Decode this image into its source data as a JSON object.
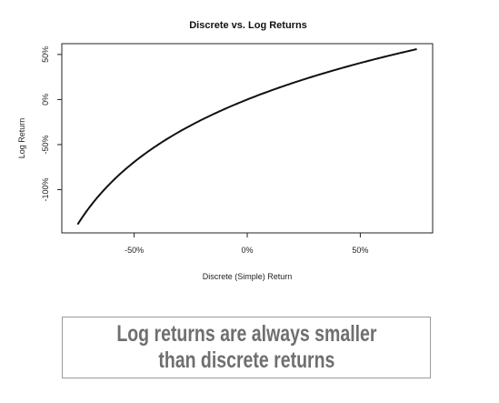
{
  "chart_data": {
    "type": "line",
    "title": "Discrete vs. Log Returns",
    "xlabel": "Discrete (Simple) Return",
    "ylabel": "Log Return",
    "xlim": [
      -0.82,
      0.82
    ],
    "ylim": [
      -1.48,
      0.62
    ],
    "x_ticks": [
      {
        "value": -0.5,
        "label": "-50%"
      },
      {
        "value": 0,
        "label": "0%"
      },
      {
        "value": 0.5,
        "label": "50%"
      }
    ],
    "y_ticks": [
      {
        "value": -1.0,
        "label": "-100%"
      },
      {
        "value": -0.5,
        "label": "-50%"
      },
      {
        "value": 0,
        "label": "0%"
      },
      {
        "value": 0.5,
        "label": "50%"
      }
    ],
    "grid": false,
    "series": [
      {
        "function": "y = ln(1 + x)",
        "x_range": [
          -0.75,
          0.75
        ],
        "color": "#111111"
      }
    ]
  },
  "callout": {
    "line1": "Log returns are always smaller",
    "line2": "than discrete returns"
  }
}
